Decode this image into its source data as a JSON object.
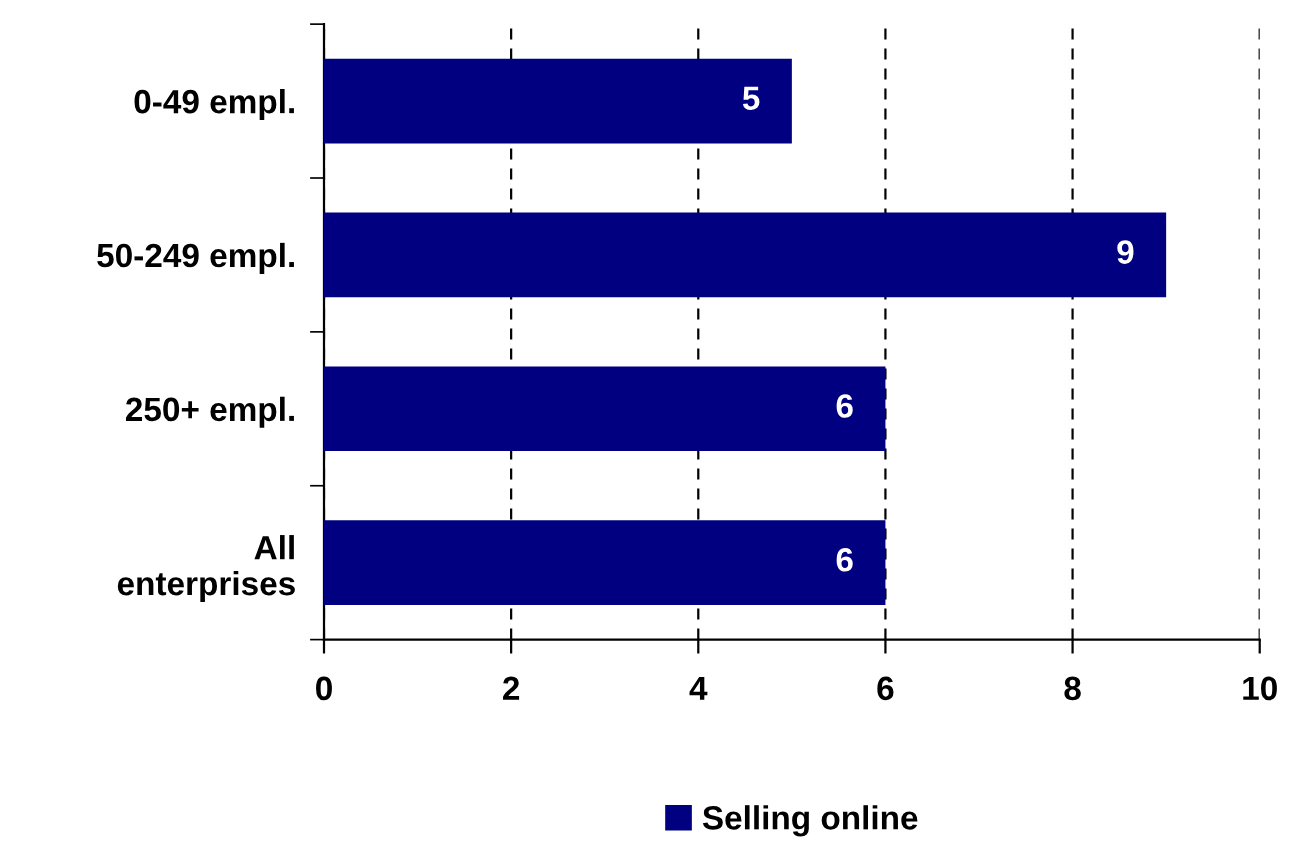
{
  "chart_data": {
    "type": "bar",
    "orientation": "horizontal",
    "categories": [
      "0-49 empl.",
      "50-249 empl.",
      "250+ empl.",
      "All\nenterprises"
    ],
    "series": [
      {
        "name": "Selling online",
        "color": "#000080",
        "values": [
          5,
          9,
          6,
          6
        ]
      }
    ],
    "xlim": [
      0,
      10
    ],
    "xticks": [
      0,
      2,
      4,
      6,
      8,
      10
    ],
    "grid": "x",
    "legend": "bottom",
    "data_labels": true
  }
}
